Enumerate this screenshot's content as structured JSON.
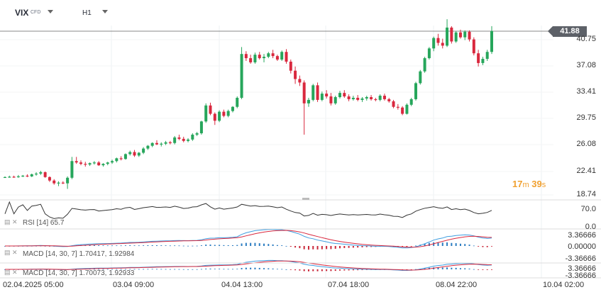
{
  "symbol": {
    "name": "VIX",
    "type": "CFD"
  },
  "timeframe": "H1",
  "last_price": "41.88",
  "countdown": {
    "minutes": "17",
    "m": "m",
    "seconds": "39",
    "s": "s"
  },
  "price_axis": [
    "40.75",
    "37.08",
    "33.41",
    "29.75",
    "26.08",
    "22.41",
    "18.74"
  ],
  "time_axis": [
    "02.04.2025  05:00",
    "03.04  09:00",
    "04.04  13:00",
    "07.04  18:00",
    "08.04  22:00",
    "10.04  02:00"
  ],
  "rsi": {
    "label": "RSI [14]",
    "value": "65.7",
    "axis": [
      "70.0",
      "0.0"
    ]
  },
  "macd1": {
    "label": "MACD [14, 30, 7]",
    "v1": "1.70417,",
    "v2": "1.92984",
    "axis": [
      "3.36666",
      "0.00000",
      "-3.36666"
    ]
  },
  "macd2": {
    "label": "MACD [14, 30, 7]",
    "v1": "1.70073,",
    "v2": "1.92933",
    "axis": [
      "3.36666",
      "-3.36666"
    ]
  },
  "colors": {
    "up": "#26a65b",
    "down": "#d9283e",
    "macd_line": "#3d9de0",
    "signal_line": "#d9283e",
    "rsi_line": "#333333"
  },
  "chart_data": {
    "type": "candlestick",
    "title": "VIX",
    "timeframe": "H1",
    "ylim": [
      18.74,
      42.5
    ],
    "ohlc": [
      [
        20.9,
        21.0,
        20.8,
        20.9
      ],
      [
        20.9,
        21.1,
        20.8,
        20.95
      ],
      [
        20.95,
        21.1,
        20.8,
        20.9
      ],
      [
        20.9,
        21.2,
        20.8,
        21.0
      ],
      [
        21.0,
        21.2,
        20.9,
        21.1
      ],
      [
        21.1,
        21.3,
        20.9,
        21.0
      ],
      [
        21.0,
        21.4,
        20.9,
        21.3
      ],
      [
        21.3,
        21.6,
        21.1,
        21.4
      ],
      [
        21.4,
        21.8,
        21.2,
        21.6
      ],
      [
        21.6,
        21.7,
        20.8,
        20.9
      ],
      [
        20.9,
        21.0,
        20.2,
        20.4
      ],
      [
        20.4,
        20.6,
        19.8,
        20.0
      ],
      [
        20.0,
        20.3,
        19.6,
        20.1
      ],
      [
        20.1,
        20.3,
        19.9,
        20.0
      ],
      [
        20.0,
        21.0,
        19.2,
        20.8
      ],
      [
        20.8,
        23.8,
        20.6,
        23.2
      ],
      [
        23.2,
        23.8,
        22.8,
        23.0
      ],
      [
        23.0,
        23.3,
        22.6,
        22.8
      ],
      [
        22.8,
        23.1,
        22.4,
        22.7
      ],
      [
        22.7,
        23.0,
        22.5,
        22.9
      ],
      [
        22.9,
        23.2,
        22.7,
        23.0
      ],
      [
        23.0,
        23.2,
        22.5,
        22.6
      ],
      [
        22.6,
        22.9,
        22.4,
        22.8
      ],
      [
        22.8,
        23.1,
        22.6,
        23.0
      ],
      [
        23.0,
        23.4,
        22.8,
        23.2
      ],
      [
        23.2,
        23.7,
        23.0,
        23.6
      ],
      [
        23.6,
        23.9,
        23.3,
        23.5
      ],
      [
        23.5,
        24.3,
        23.4,
        24.2
      ],
      [
        24.2,
        24.7,
        24.0,
        24.5
      ],
      [
        24.5,
        24.8,
        23.8,
        24.0
      ],
      [
        24.0,
        24.5,
        23.8,
        24.4
      ],
      [
        24.4,
        25.2,
        24.2,
        25.0
      ],
      [
        25.0,
        25.5,
        24.8,
        25.4
      ],
      [
        25.4,
        25.9,
        25.2,
        25.8
      ],
      [
        25.8,
        26.2,
        25.5,
        25.6
      ],
      [
        25.6,
        25.9,
        25.3,
        25.7
      ],
      [
        25.7,
        26.1,
        25.5,
        25.9
      ],
      [
        25.9,
        26.1,
        25.6,
        25.8
      ],
      [
        25.8,
        26.8,
        25.6,
        26.6
      ],
      [
        26.6,
        27.0,
        26.2,
        26.4
      ],
      [
        26.4,
        26.7,
        25.9,
        26.1
      ],
      [
        26.1,
        26.5,
        25.9,
        26.3
      ],
      [
        26.3,
        27.2,
        26.1,
        27.0
      ],
      [
        27.0,
        27.4,
        26.8,
        27.2
      ],
      [
        27.2,
        29.0,
        27.0,
        28.9
      ],
      [
        28.9,
        31.5,
        28.7,
        31.2
      ],
      [
        31.2,
        31.6,
        29.8,
        30.0
      ],
      [
        30.0,
        30.2,
        28.4,
        29.0
      ],
      [
        29.0,
        30.5,
        28.8,
        30.3
      ],
      [
        30.3,
        30.6,
        29.5,
        29.7
      ],
      [
        29.7,
        30.6,
        29.5,
        30.4
      ],
      [
        30.4,
        31.1,
        30.2,
        31.0
      ],
      [
        31.0,
        32.5,
        30.8,
        32.3
      ],
      [
        32.3,
        39.6,
        32.1,
        38.6
      ],
      [
        38.6,
        39.0,
        37.6,
        38.0
      ],
      [
        38.0,
        38.5,
        37.2,
        37.4
      ],
      [
        37.4,
        38.8,
        37.2,
        38.5
      ],
      [
        38.5,
        38.9,
        37.8,
        38.0
      ],
      [
        38.0,
        38.6,
        37.4,
        38.2
      ],
      [
        38.2,
        38.9,
        38.0,
        38.7
      ],
      [
        38.7,
        39.2,
        38.0,
        38.3
      ],
      [
        38.3,
        38.5,
        37.6,
        37.8
      ],
      [
        37.8,
        39.1,
        37.6,
        38.9
      ],
      [
        38.9,
        39.3,
        37.2,
        37.5
      ],
      [
        37.5,
        37.8,
        35.8,
        36.2
      ],
      [
        36.2,
        36.8,
        34.3,
        35.0
      ],
      [
        35.0,
        35.5,
        34.0,
        34.5
      ],
      [
        34.5,
        34.8,
        27.0,
        31.5
      ],
      [
        31.5,
        32.3,
        31.0,
        32.0
      ],
      [
        32.0,
        34.3,
        31.8,
        34.1
      ],
      [
        34.1,
        34.5,
        31.7,
        32.0
      ],
      [
        32.0,
        33.2,
        31.8,
        32.9
      ],
      [
        32.9,
        33.4,
        32.2,
        32.5
      ],
      [
        32.5,
        33.0,
        31.2,
        31.5
      ],
      [
        31.5,
        32.6,
        31.3,
        32.4
      ],
      [
        32.4,
        33.3,
        32.2,
        33.0
      ],
      [
        33.0,
        33.4,
        32.3,
        32.5
      ],
      [
        32.5,
        32.8,
        31.8,
        32.1
      ],
      [
        32.1,
        32.6,
        31.9,
        32.3
      ],
      [
        32.3,
        32.7,
        31.8,
        32.0
      ],
      [
        32.0,
        32.4,
        31.7,
        32.2
      ],
      [
        32.2,
        32.6,
        31.9,
        32.4
      ],
      [
        32.4,
        32.7,
        31.9,
        32.1
      ],
      [
        32.1,
        32.3,
        31.8,
        32.0
      ],
      [
        32.0,
        32.8,
        31.8,
        32.6
      ],
      [
        32.6,
        32.9,
        31.9,
        32.1
      ],
      [
        32.1,
        32.3,
        31.6,
        31.8
      ],
      [
        31.8,
        32.0,
        30.8,
        31.0
      ],
      [
        31.0,
        31.4,
        30.6,
        30.9
      ],
      [
        30.9,
        31.1,
        29.8,
        30.0
      ],
      [
        30.0,
        31.5,
        29.9,
        31.3
      ],
      [
        31.3,
        32.3,
        31.1,
        32.1
      ],
      [
        32.1,
        34.6,
        31.9,
        34.4
      ],
      [
        34.4,
        36.3,
        34.2,
        36.1
      ],
      [
        36.1,
        38.2,
        35.9,
        38.0
      ],
      [
        38.0,
        39.6,
        37.8,
        39.4
      ],
      [
        39.4,
        41.1,
        39.0,
        40.9
      ],
      [
        40.9,
        41.5,
        39.8,
        40.2
      ],
      [
        40.2,
        40.8,
        39.4,
        39.8
      ],
      [
        39.8,
        43.6,
        39.6,
        42.4
      ],
      [
        42.4,
        42.6,
        40.1,
        40.4
      ],
      [
        40.4,
        41.9,
        40.2,
        41.7
      ],
      [
        41.7,
        42.1,
        40.8,
        41.0
      ],
      [
        41.0,
        42.0,
        40.6,
        41.8
      ],
      [
        41.8,
        42.0,
        40.4,
        40.7
      ],
      [
        40.7,
        41.0,
        38.4,
        38.7
      ],
      [
        38.7,
        39.2,
        36.8,
        37.3
      ],
      [
        37.3,
        38.2,
        37.0,
        37.9
      ],
      [
        37.9,
        39.2,
        37.6,
        38.9
      ],
      [
        38.9,
        42.6,
        38.6,
        41.9
      ]
    ],
    "time_labels": [
      "02.04.2025 05:00",
      "03.04 09:00",
      "04.04 13:00",
      "07.04 18:00",
      "08.04 22:00",
      "10.04 02:00"
    ],
    "last_price": 41.88,
    "indicators": [
      {
        "name": "RSI",
        "params": [
          14
        ],
        "value": 65.7
      },
      {
        "name": "MACD",
        "params": [
          14,
          30,
          7
        ],
        "values": [
          1.70417,
          1.92984
        ]
      },
      {
        "name": "MACD",
        "params": [
          14,
          30,
          7
        ],
        "values": [
          1.70073,
          1.92933
        ]
      }
    ]
  }
}
